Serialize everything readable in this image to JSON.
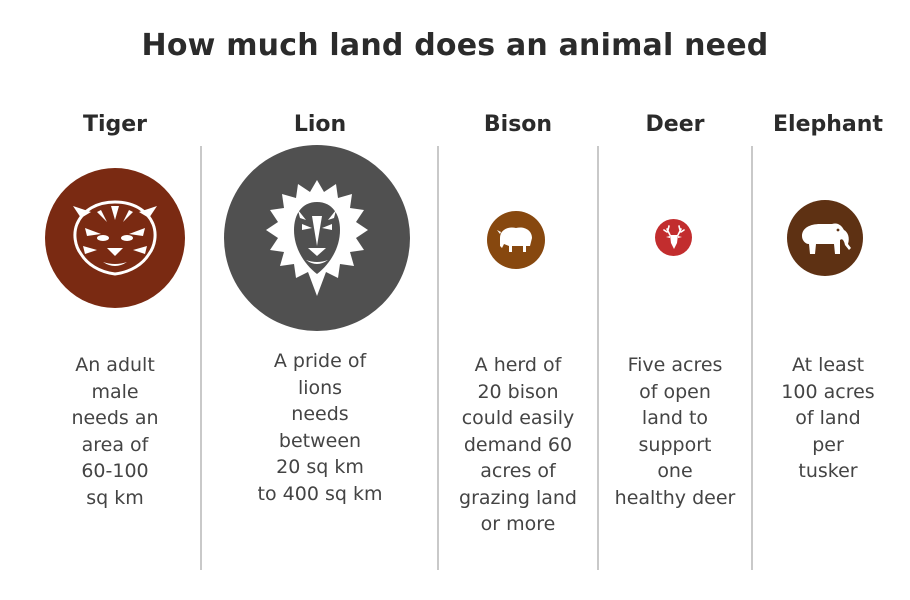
{
  "title": "How much land does an animal need",
  "animals": [
    {
      "name": "Tiger",
      "color": "#7a2a12",
      "icon": "tiger-icon",
      "description": "An adult\nmale\nneeds an\narea of\n60-100\nsq km"
    },
    {
      "name": "Lion",
      "color": "#505050",
      "icon": "lion-icon",
      "description": "A pride of\nlions\nneeds\nbetween\n20 sq km\nto 400 sq km"
    },
    {
      "name": "Bison",
      "color": "#87480f",
      "icon": "bison-icon",
      "description": "A herd of\n20 bison\ncould easily\ndemand 60\nacres of\ngrazing land\nor more"
    },
    {
      "name": "Deer",
      "color": "#c22d2e",
      "icon": "deer-icon",
      "description": "Five acres\nof open\nland to\nsupport\none\nhealthy deer"
    },
    {
      "name": "Elephant",
      "color": "#5e3113",
      "icon": "elephant-icon",
      "description": "At least\n100 acres\nof land\nper\ntusker"
    }
  ]
}
